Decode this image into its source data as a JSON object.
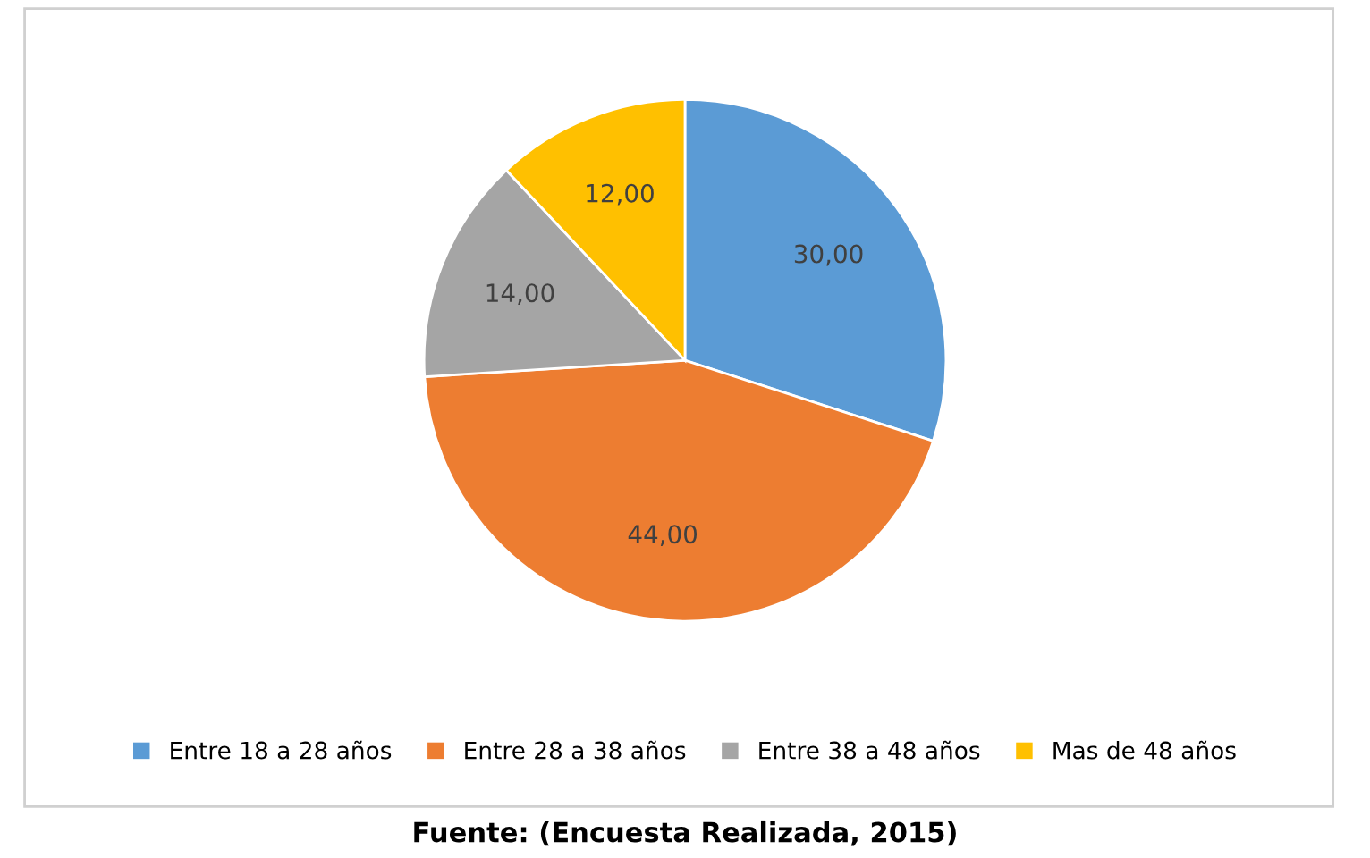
{
  "chart_data": {
    "type": "pie",
    "categories": [
      "Entre 18 a 28 años",
      "Entre 28 a 38 años",
      "Entre 38 a 48 años",
      "Mas de 48 años"
    ],
    "values": [
      30,
      44,
      14,
      12
    ],
    "value_labels": [
      "30,00",
      "44,00",
      "14,00",
      "12,00"
    ],
    "colors": [
      "#5b9bd5",
      "#ed7d31",
      "#a5a5a5",
      "#ffc000"
    ],
    "legend": "bottom",
    "annotations": [
      "Fuente: (Encuesta Realizada, 2015)"
    ]
  }
}
